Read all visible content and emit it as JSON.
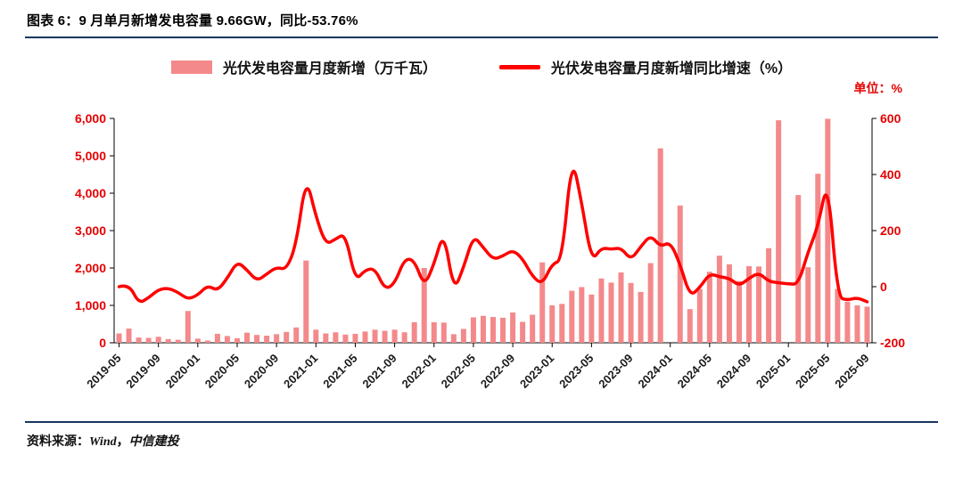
{
  "header": {
    "title": "图表 6：9 月单月新增发电容量 9.66GW，同比-53.76%"
  },
  "legend": {
    "bar_label": "光伏发电容量月度新增（万千瓦）",
    "line_label": "光伏发电容量月度新增同比增速（%）"
  },
  "unit_label": "单位：%",
  "footer": {
    "source_label": "资料来源：",
    "source_wind": "Wind",
    "source_sep": "，",
    "source_org": "中信建投"
  },
  "colors": {
    "bar": "#F4898B",
    "line": "#FE0000",
    "rule": "#17375E",
    "axis_number": "#E60000",
    "x_label": "#1A1A1A",
    "axis_line": "#000000"
  },
  "chart_data": {
    "type": "combo-bar-line",
    "title": "图表 6：9 月单月新增发电容量 9.66GW，同比-53.76%",
    "categories": [
      "2019-05",
      "2019-06",
      "2019-07",
      "2019-08",
      "2019-09",
      "2019-10",
      "2019-11",
      "2019-12",
      "2020-01",
      "2020-02",
      "2020-03",
      "2020-04",
      "2020-05",
      "2020-06",
      "2020-07",
      "2020-08",
      "2020-09",
      "2020-10",
      "2020-11",
      "2020-12",
      "2021-01",
      "2021-02",
      "2021-03",
      "2021-04",
      "2021-05",
      "2021-06",
      "2021-07",
      "2021-08",
      "2021-09",
      "2021-10",
      "2021-11",
      "2021-12",
      "2022-01",
      "2022-02",
      "2022-03",
      "2022-04",
      "2022-05",
      "2022-06",
      "2022-07",
      "2022-08",
      "2022-09",
      "2022-10",
      "2022-11",
      "2022-12",
      "2023-01",
      "2023-02",
      "2023-03",
      "2023-04",
      "2023-05",
      "2023-06",
      "2023-07",
      "2023-08",
      "2023-09",
      "2023-10",
      "2023-11",
      "2023-12",
      "2024-01",
      "2024-02",
      "2024-03",
      "2024-04",
      "2024-05",
      "2024-06",
      "2024-07",
      "2024-08",
      "2024-09",
      "2024-10",
      "2024-11",
      "2024-12",
      "2025-01",
      "2025-02",
      "2025-03",
      "2025-04",
      "2025-05",
      "2025-06",
      "2025-07",
      "2025-08",
      "2025-09"
    ],
    "x_tick_every": 4,
    "series": [
      {
        "name": "光伏发电容量月度新增（万千瓦）",
        "type": "bar",
        "axis": "left",
        "values": [
          250,
          380,
          140,
          130,
          160,
          100,
          80,
          850,
          110,
          60,
          240,
          180,
          120,
          270,
          210,
          190,
          230,
          290,
          410,
          2200,
          350,
          250,
          280,
          220,
          240,
          300,
          350,
          320,
          350,
          280,
          550,
          2000,
          550,
          540,
          230,
          370,
          680,
          720,
          690,
          670,
          810,
          560,
          750,
          2150,
          1000,
          1040,
          1390,
          1490,
          1290,
          1720,
          1610,
          1880,
          1600,
          1360,
          2130,
          5200,
          0,
          3670,
          900,
          1440,
          1900,
          2330,
          2100,
          1650,
          2050,
          2040,
          2530,
          5950,
          0,
          3950,
          2020,
          4520,
          5990,
          1440,
          1100,
          1000,
          966
        ]
      },
      {
        "name": "光伏发电容量月度新增同比增速（%）",
        "type": "line",
        "axis": "right",
        "values": [
          0,
          10,
          -60,
          -40,
          -10,
          -5,
          -20,
          -45,
          -30,
          5,
          -15,
          30,
          90,
          60,
          20,
          45,
          70,
          60,
          150,
          395,
          250,
          150,
          170,
          190,
          20,
          60,
          65,
          -10,
          10,
          100,
          95,
          0,
          80,
          200,
          -18,
          68,
          183,
          140,
          97,
          109,
          131,
          100,
          36,
          8,
          82,
          93,
          470,
          300,
          90,
          139,
          133,
          139,
          95,
          143,
          184,
          142,
          160,
          80,
          -35,
          -3,
          47,
          35,
          30,
          3,
          30,
          50,
          19,
          14,
          10,
          8,
          124,
          214,
          389,
          -38,
          -48,
          -39,
          -53.76
        ]
      }
    ],
    "left_axis": {
      "min": 0,
      "max": 6000,
      "step": 1000,
      "tick_labels": [
        "0",
        "1,000",
        "2,000",
        "3,000",
        "4,000",
        "5,000",
        "6,000"
      ]
    },
    "right_axis": {
      "min": -200,
      "max": 600,
      "step": 200,
      "tick_labels": [
        "-200",
        "0",
        "200",
        "400",
        "600"
      ],
      "unit": "%"
    },
    "grid": false,
    "legend_position": "top-center"
  }
}
